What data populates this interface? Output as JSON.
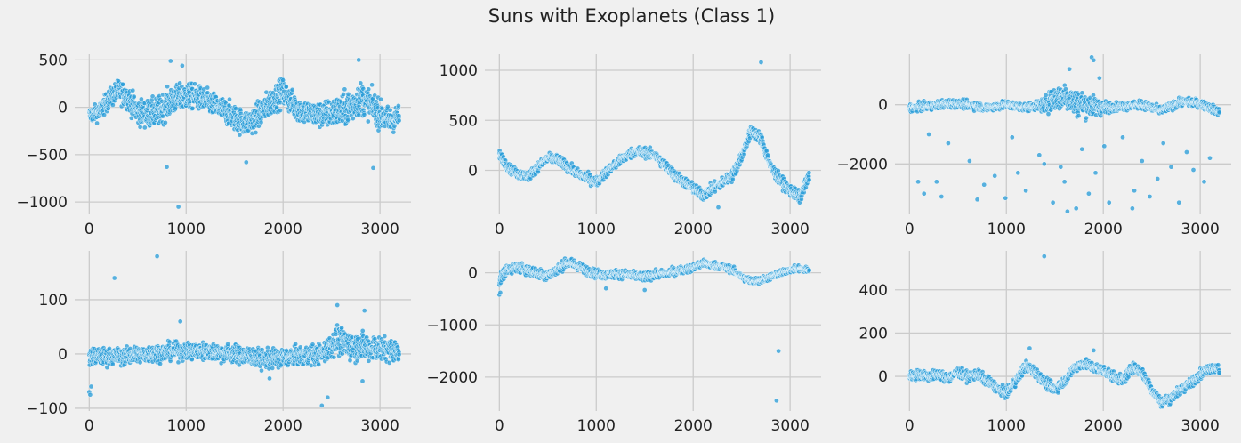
{
  "figure": {
    "title": "Suns with Exoplanets (Class 1)"
  },
  "style": {
    "point_color": "#2b9ed8",
    "point_edge": "#ffffff",
    "grid_color": "#cbcbcb",
    "background": "#f0f0f0"
  },
  "chart_data": [
    {
      "type": "scatter",
      "title": "",
      "xlabel": "",
      "ylabel": "",
      "xlim": [
        -150,
        3320
      ],
      "ylim": [
        -1130,
        560
      ],
      "xticks": [
        0,
        1000,
        2000,
        3000
      ],
      "yticks": [
        -1000,
        -500,
        0,
        500
      ],
      "xtick_labels": [
        "0",
        "1000",
        "2000",
        "3000"
      ],
      "ytick_labels": [
        "−1000",
        "−500",
        "0",
        "500"
      ],
      "grid": true,
      "anchors": [
        [
          0,
          -80
        ],
        [
          100,
          -50
        ],
        [
          200,
          80
        ],
        [
          300,
          180
        ],
        [
          400,
          100
        ],
        [
          500,
          -50
        ],
        [
          600,
          -70
        ],
        [
          700,
          -60
        ],
        [
          800,
          30
        ],
        [
          900,
          90
        ],
        [
          1000,
          120
        ],
        [
          1100,
          110
        ],
        [
          1200,
          70
        ],
        [
          1300,
          20
        ],
        [
          1400,
          -40
        ],
        [
          1500,
          -110
        ],
        [
          1600,
          -170
        ],
        [
          1700,
          -130
        ],
        [
          1800,
          -20
        ],
        [
          1900,
          80
        ],
        [
          2000,
          170
        ],
        [
          2100,
          30
        ],
        [
          2200,
          -40
        ],
        [
          2300,
          -70
        ],
        [
          2400,
          -80
        ],
        [
          2500,
          -60
        ],
        [
          2600,
          -40
        ],
        [
          2700,
          10
        ],
        [
          2800,
          100
        ],
        [
          2900,
          40
        ],
        [
          3000,
          -80
        ],
        [
          3100,
          -140
        ],
        [
          3197,
          -100
        ]
      ],
      "noise": [
        [
          0,
          70
        ],
        [
          700,
          140
        ],
        [
          1200,
          110
        ],
        [
          2000,
          130
        ],
        [
          2300,
          110
        ],
        [
          2700,
          160
        ],
        [
          3197,
          110
        ]
      ],
      "outliers": [
        [
          840,
          490
        ],
        [
          960,
          440
        ],
        [
          800,
          -630
        ],
        [
          920,
          -1050
        ],
        [
          1620,
          -580
        ],
        [
          2780,
          500
        ],
        [
          2930,
          -640
        ]
      ]
    },
    {
      "type": "scatter",
      "title": "",
      "xlabel": "",
      "ylabel": "",
      "xlim": [
        -150,
        3320
      ],
      "ylim": [
        -440,
        1160
      ],
      "xticks": [
        0,
        1000,
        2000,
        3000
      ],
      "yticks": [
        0,
        500,
        1000
      ],
      "xtick_labels": [
        "0",
        "1000",
        "2000",
        "3000"
      ],
      "ytick_labels": [
        "0",
        "500",
        "1000"
      ],
      "grid": true,
      "anchors": [
        [
          0,
          160
        ],
        [
          100,
          20
        ],
        [
          200,
          -40
        ],
        [
          300,
          -60
        ],
        [
          400,
          40
        ],
        [
          500,
          120
        ],
        [
          600,
          110
        ],
        [
          700,
          40
        ],
        [
          800,
          -30
        ],
        [
          900,
          -70
        ],
        [
          1000,
          -120
        ],
        [
          1100,
          -20
        ],
        [
          1200,
          60
        ],
        [
          1300,
          140
        ],
        [
          1400,
          190
        ],
        [
          1500,
          180
        ],
        [
          1600,
          150
        ],
        [
          1700,
          60
        ],
        [
          1800,
          -40
        ],
        [
          1900,
          -110
        ],
        [
          2000,
          -180
        ],
        [
          2100,
          -250
        ],
        [
          2200,
          -180
        ],
        [
          2300,
          -120
        ],
        [
          2400,
          -60
        ],
        [
          2500,
          140
        ],
        [
          2600,
          400
        ],
        [
          2700,
          320
        ],
        [
          2800,
          30
        ],
        [
          2900,
          -100
        ],
        [
          3000,
          -200
        ],
        [
          3100,
          -270
        ],
        [
          3197,
          -60
        ]
      ],
      "noise": [
        [
          0,
          40
        ],
        [
          3197,
          50
        ]
      ],
      "outliers": [
        [
          2700,
          1080
        ],
        [
          2260,
          -370
        ]
      ]
    },
    {
      "type": "scatter",
      "title": "",
      "xlabel": "",
      "ylabel": "",
      "xlim": [
        -150,
        3320
      ],
      "ylim": [
        -3700,
        1700
      ],
      "xticks": [
        0,
        1000,
        2000,
        3000
      ],
      "yticks": [
        -2000,
        0
      ],
      "xtick_labels": [
        "0",
        "1000",
        "2000",
        "3000"
      ],
      "ytick_labels": [
        "−2000",
        "0"
      ],
      "grid": true,
      "anchors": [
        [
          0,
          -100
        ],
        [
          200,
          -50
        ],
        [
          400,
          50
        ],
        [
          600,
          0
        ],
        [
          800,
          -100
        ],
        [
          1000,
          0
        ],
        [
          1200,
          -100
        ],
        [
          1400,
          0
        ],
        [
          1500,
          200
        ],
        [
          1600,
          300
        ],
        [
          1700,
          100
        ],
        [
          1800,
          0
        ],
        [
          1900,
          -50
        ],
        [
          2000,
          -100
        ],
        [
          2200,
          -50
        ],
        [
          2400,
          0
        ],
        [
          2600,
          -200
        ],
        [
          2800,
          100
        ],
        [
          3000,
          50
        ],
        [
          3197,
          -250
        ]
      ],
      "noise": [
        [
          0,
          120
        ],
        [
          1300,
          120
        ],
        [
          1500,
          350
        ],
        [
          1700,
          420
        ],
        [
          1900,
          300
        ],
        [
          2100,
          120
        ],
        [
          3197,
          120
        ]
      ],
      "outliers": [
        [
          1880,
          1600
        ],
        [
          1900,
          1500
        ],
        [
          1650,
          1200
        ],
        [
          1960,
          900
        ],
        [
          200,
          -1000
        ],
        [
          280,
          -2600
        ],
        [
          330,
          -3100
        ],
        [
          400,
          -1300
        ],
        [
          620,
          -1900
        ],
        [
          700,
          -3200
        ],
        [
          770,
          -2700
        ],
        [
          880,
          -2400
        ],
        [
          990,
          -3150
        ],
        [
          1060,
          -1100
        ],
        [
          1120,
          -2300
        ],
        [
          1200,
          -2900
        ],
        [
          1340,
          -1700
        ],
        [
          1390,
          -2000
        ],
        [
          1480,
          -3300
        ],
        [
          1560,
          -2100
        ],
        [
          1600,
          -2600
        ],
        [
          1720,
          -3500
        ],
        [
          1780,
          -1500
        ],
        [
          1850,
          -3000
        ],
        [
          1920,
          -2300
        ],
        [
          2010,
          -1400
        ],
        [
          2060,
          -3300
        ],
        [
          2200,
          -1100
        ],
        [
          2320,
          -2900
        ],
        [
          2400,
          -1900
        ],
        [
          2480,
          -3100
        ],
        [
          2560,
          -2500
        ],
        [
          2620,
          -1300
        ],
        [
          2700,
          -2100
        ],
        [
          2780,
          -3300
        ],
        [
          2860,
          -1600
        ],
        [
          2930,
          -2200
        ],
        [
          3040,
          -2600
        ],
        [
          3100,
          -1800
        ],
        [
          90,
          -2600
        ],
        [
          150,
          -3000
        ],
        [
          2300,
          -3500
        ],
        [
          1630,
          -3600
        ]
      ]
    },
    {
      "type": "scatter",
      "title": "",
      "xlabel": "",
      "ylabel": "",
      "xlim": [
        -150,
        3320
      ],
      "ylim": [
        -105,
        190
      ],
      "xticks": [
        0,
        1000,
        2000,
        3000
      ],
      "yticks": [
        -100,
        0,
        100
      ],
      "xtick_labels": [
        "0",
        "1000",
        "2000",
        "3000"
      ],
      "ytick_labels": [
        "−100",
        "0",
        "100"
      ],
      "grid": true,
      "anchors": [
        [
          0,
          -5
        ],
        [
          300,
          -5
        ],
        [
          600,
          0
        ],
        [
          900,
          5
        ],
        [
          1200,
          5
        ],
        [
          1500,
          0
        ],
        [
          1800,
          -10
        ],
        [
          2100,
          -5
        ],
        [
          2400,
          0
        ],
        [
          2550,
          25
        ],
        [
          2700,
          15
        ],
        [
          3000,
          10
        ],
        [
          3197,
          5
        ]
      ],
      "noise": [
        [
          0,
          14
        ],
        [
          1000,
          14
        ],
        [
          2400,
          16
        ],
        [
          2600,
          24
        ],
        [
          3197,
          18
        ]
      ],
      "outliers": [
        [
          0,
          -70
        ],
        [
          10,
          -75
        ],
        [
          20,
          -60
        ],
        [
          260,
          140
        ],
        [
          700,
          180
        ],
        [
          940,
          60
        ],
        [
          2560,
          90
        ],
        [
          2840,
          80
        ],
        [
          2460,
          -80
        ],
        [
          2400,
          -95
        ],
        [
          1860,
          -45
        ],
        [
          2820,
          -50
        ]
      ]
    },
    {
      "type": "scatter",
      "title": "",
      "xlabel": "",
      "ylabel": "",
      "xlim": [
        -150,
        3320
      ],
      "ylim": [
        -2650,
        420
      ],
      "xticks": [
        0,
        1000,
        2000,
        3000
      ],
      "yticks": [
        -2000,
        -1000,
        0
      ],
      "xtick_labels": [
        "0",
        "1000",
        "2000",
        "3000"
      ],
      "ytick_labels": [
        "−2000",
        "−1000",
        "0"
      ],
      "grid": true,
      "anchors": [
        [
          0,
          -150
        ],
        [
          50,
          0
        ],
        [
          100,
          80
        ],
        [
          200,
          100
        ],
        [
          300,
          60
        ],
        [
          400,
          -20
        ],
        [
          500,
          -40
        ],
        [
          600,
          60
        ],
        [
          700,
          200
        ],
        [
          800,
          150
        ],
        [
          900,
          40
        ],
        [
          1000,
          -20
        ],
        [
          1100,
          -40
        ],
        [
          1200,
          -20
        ],
        [
          1300,
          -30
        ],
        [
          1400,
          -60
        ],
        [
          1500,
          -80
        ],
        [
          1600,
          -40
        ],
        [
          1700,
          -20
        ],
        [
          1800,
          20
        ],
        [
          1900,
          60
        ],
        [
          2000,
          100
        ],
        [
          2100,
          180
        ],
        [
          2200,
          150
        ],
        [
          2300,
          120
        ],
        [
          2400,
          60
        ],
        [
          2500,
          -80
        ],
        [
          2600,
          -160
        ],
        [
          2700,
          -140
        ],
        [
          2800,
          -80
        ],
        [
          2900,
          -10
        ],
        [
          3000,
          60
        ],
        [
          3100,
          80
        ],
        [
          3197,
          50
        ]
      ],
      "noise": [
        [
          0,
          90
        ],
        [
          3197,
          50
        ]
      ],
      "outliers": [
        [
          0,
          -420
        ],
        [
          10,
          -380
        ],
        [
          2880,
          -1500
        ],
        [
          2860,
          -2450
        ],
        [
          1100,
          -300
        ],
        [
          1500,
          -330
        ]
      ]
    },
    {
      "type": "scatter",
      "title": "",
      "xlabel": "",
      "ylabel": "",
      "xlim": [
        -150,
        3320
      ],
      "ylim": [
        -160,
        580
      ],
      "xticks": [
        0,
        1000,
        2000,
        3000
      ],
      "yticks": [
        0,
        200,
        400
      ],
      "xtick_labels": [
        "0",
        "1000",
        "2000",
        "3000"
      ],
      "ytick_labels": [
        "0",
        "200",
        "400"
      ],
      "grid": true,
      "anchors": [
        [
          0,
          0
        ],
        [
          100,
          10
        ],
        [
          200,
          0
        ],
        [
          300,
          10
        ],
        [
          400,
          -10
        ],
        [
          500,
          20
        ],
        [
          600,
          0
        ],
        [
          700,
          10
        ],
        [
          800,
          -20
        ],
        [
          900,
          -50
        ],
        [
          1000,
          -80
        ],
        [
          1100,
          -20
        ],
        [
          1200,
          50
        ],
        [
          1300,
          20
        ],
        [
          1400,
          -30
        ],
        [
          1500,
          -60
        ],
        [
          1600,
          -20
        ],
        [
          1700,
          40
        ],
        [
          1800,
          60
        ],
        [
          1900,
          40
        ],
        [
          2000,
          30
        ],
        [
          2100,
          0
        ],
        [
          2200,
          -20
        ],
        [
          2300,
          40
        ],
        [
          2400,
          20
        ],
        [
          2500,
          -60
        ],
        [
          2600,
          -120
        ],
        [
          2700,
          -100
        ],
        [
          2800,
          -60
        ],
        [
          2900,
          -30
        ],
        [
          3000,
          10
        ],
        [
          3100,
          40
        ],
        [
          3197,
          30
        ]
      ],
      "noise": [
        [
          0,
          20
        ],
        [
          3197,
          20
        ]
      ],
      "outliers": [
        [
          1390,
          555
        ],
        [
          1240,
          130
        ],
        [
          1900,
          120
        ]
      ]
    }
  ]
}
